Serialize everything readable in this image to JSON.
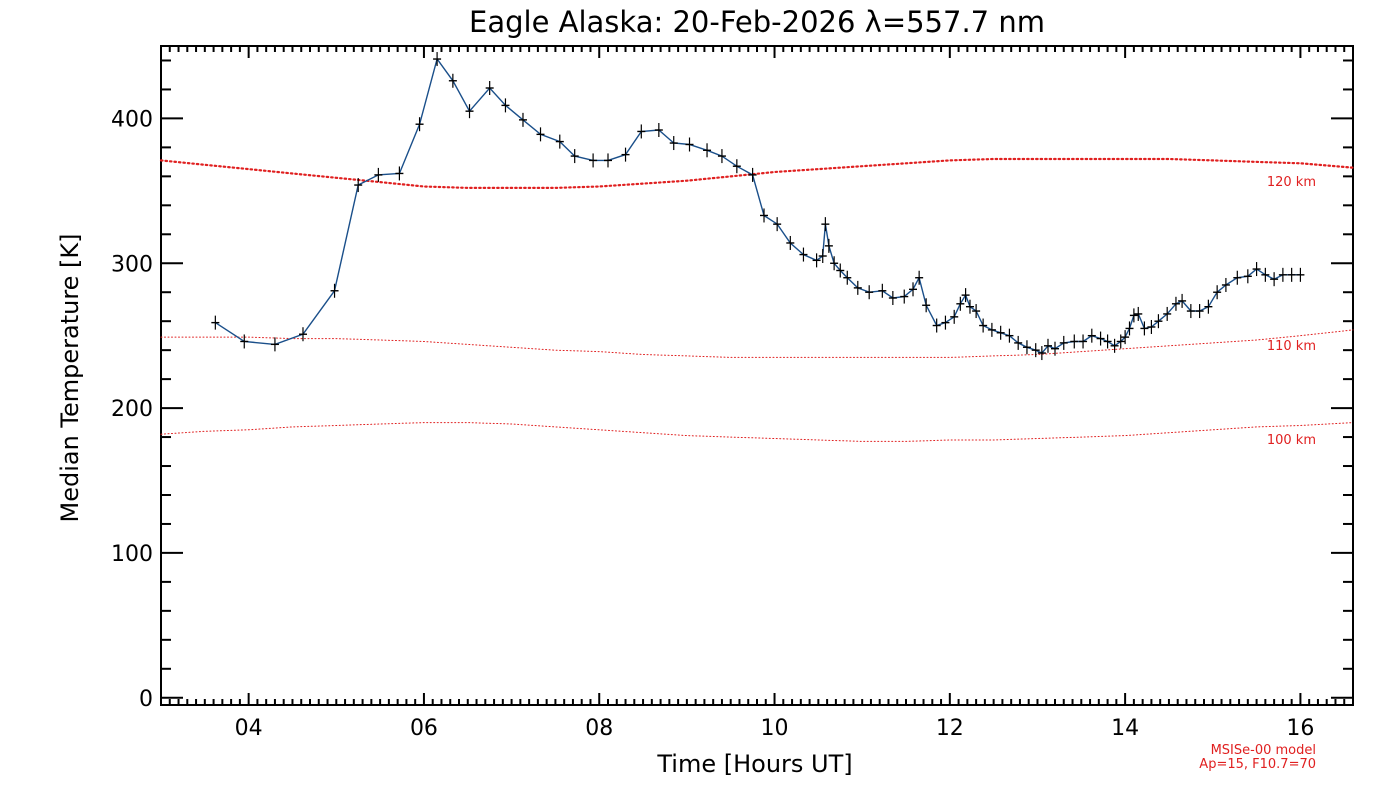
{
  "chart_data": {
    "type": "line",
    "title": "Eagle Alaska: 20-Feb-2026 λ=557.7 nm",
    "xlabel": "Time [Hours UT]",
    "ylabel": "Median Temperature [K]",
    "xlim": [
      3.0,
      16.6
    ],
    "ylim": [
      -5,
      450
    ],
    "x_ticks": [
      4,
      6,
      8,
      10,
      12,
      14,
      16
    ],
    "x_tick_labels": [
      "04",
      "06",
      "08",
      "10",
      "12",
      "14",
      "16"
    ],
    "y_ticks": [
      0,
      100,
      200,
      300,
      400
    ],
    "y_tick_labels": [
      "0",
      "100",
      "200",
      "300",
      "400"
    ],
    "grid": false,
    "series": [
      {
        "name": "Median Temperature",
        "color": "#1a4f8a",
        "marker": "plus",
        "x": [
          3.62,
          3.95,
          4.3,
          4.62,
          4.98,
          5.25,
          5.48,
          5.72,
          5.95,
          6.15,
          6.33,
          6.52,
          6.75,
          6.93,
          7.13,
          7.33,
          7.55,
          7.72,
          7.93,
          8.1,
          8.3,
          8.48,
          8.68,
          8.85,
          9.03,
          9.23,
          9.4,
          9.57,
          9.75,
          9.88,
          10.03,
          10.18,
          10.33,
          10.48,
          10.55,
          10.58,
          10.62,
          10.68,
          10.75,
          10.83,
          10.95,
          11.08,
          11.23,
          11.35,
          11.48,
          11.58,
          11.65,
          11.73,
          11.85,
          11.95,
          12.05,
          12.12,
          12.18,
          12.23,
          12.3,
          12.38,
          12.48,
          12.58,
          12.68,
          12.78,
          12.88,
          12.98,
          13.05,
          13.12,
          13.2,
          13.3,
          13.42,
          13.52,
          13.62,
          13.72,
          13.8,
          13.88,
          13.95,
          14.0,
          14.05,
          14.1,
          14.15,
          14.22,
          14.3,
          14.38,
          14.48,
          14.58,
          14.65,
          14.75,
          14.85,
          14.95,
          15.05,
          15.15,
          15.28,
          15.4,
          15.5,
          15.6,
          15.7,
          15.8,
          15.9,
          16.0
        ],
        "y": [
          259,
          246,
          244,
          251,
          281,
          354,
          361,
          362,
          396,
          441,
          426,
          405,
          421,
          409,
          399,
          389,
          384,
          374,
          371,
          371,
          375,
          391,
          392,
          383,
          382,
          378,
          374,
          367,
          361,
          333,
          327,
          314,
          306,
          302,
          305,
          327,
          312,
          300,
          295,
          290,
          283,
          280,
          281,
          276,
          277,
          282,
          290,
          271,
          257,
          259,
          263,
          272,
          278,
          270,
          267,
          257,
          254,
          252,
          250,
          245,
          242,
          240,
          238,
          243,
          241,
          245,
          246,
          246,
          250,
          248,
          246,
          243,
          246,
          249,
          255,
          264,
          265,
          255,
          256,
          260,
          265,
          272,
          274,
          267,
          267,
          270,
          280,
          285,
          290,
          291,
          296,
          292,
          289,
          292,
          292,
          292
        ]
      },
      {
        "name": "120 km",
        "style": "dotted-thick",
        "color": "#e02020",
        "x": [
          3.0,
          3.5,
          4.0,
          4.5,
          5.0,
          5.5,
          6.0,
          6.5,
          7.0,
          7.5,
          8.0,
          8.5,
          9.0,
          9.5,
          10.0,
          10.5,
          11.0,
          11.5,
          12.0,
          12.5,
          13.0,
          13.5,
          14.0,
          14.5,
          15.0,
          15.5,
          16.0,
          16.6
        ],
        "y": [
          371,
          368,
          365,
          362,
          359,
          356,
          353,
          352,
          352,
          352,
          353,
          355,
          357,
          360,
          363,
          365,
          367,
          369,
          371,
          372,
          372,
          372,
          372,
          372,
          371,
          370,
          369,
          366
        ]
      },
      {
        "name": "110 km",
        "style": "dotted",
        "color": "#e02020",
        "x": [
          3.0,
          3.5,
          4.0,
          4.5,
          5.0,
          5.5,
          6.0,
          6.5,
          7.0,
          7.5,
          8.0,
          8.5,
          9.0,
          9.5,
          10.0,
          10.5,
          11.0,
          11.5,
          12.0,
          12.5,
          13.0,
          13.5,
          14.0,
          14.5,
          15.0,
          15.5,
          16.0,
          16.6
        ],
        "y": [
          249,
          249,
          249,
          248,
          248,
          247,
          246,
          244,
          242,
          240,
          239,
          237,
          236,
          235,
          235,
          235,
          235,
          235,
          235,
          236,
          237,
          239,
          241,
          243,
          245,
          247,
          250,
          254
        ]
      },
      {
        "name": "100 km",
        "style": "dotted",
        "color": "#e02020",
        "x": [
          3.0,
          3.5,
          4.0,
          4.5,
          5.0,
          5.5,
          6.0,
          6.5,
          7.0,
          7.5,
          8.0,
          8.5,
          9.0,
          9.5,
          10.0,
          10.5,
          11.0,
          11.5,
          12.0,
          12.5,
          13.0,
          13.5,
          14.0,
          14.5,
          15.0,
          15.5,
          16.0,
          16.6
        ],
        "y": [
          182,
          184,
          185,
          187,
          188,
          189,
          190,
          190,
          189,
          187,
          185,
          183,
          181,
          180,
          179,
          178,
          177,
          177,
          178,
          178,
          179,
          180,
          181,
          183,
          185,
          187,
          188,
          190
        ]
      }
    ],
    "annotations": {
      "model_label_120": "120 km",
      "model_label_110": "110 km",
      "model_label_100": "100 km",
      "model_name": "MSISe-00 model",
      "model_params": "Ap=15, F10.7=70"
    }
  }
}
